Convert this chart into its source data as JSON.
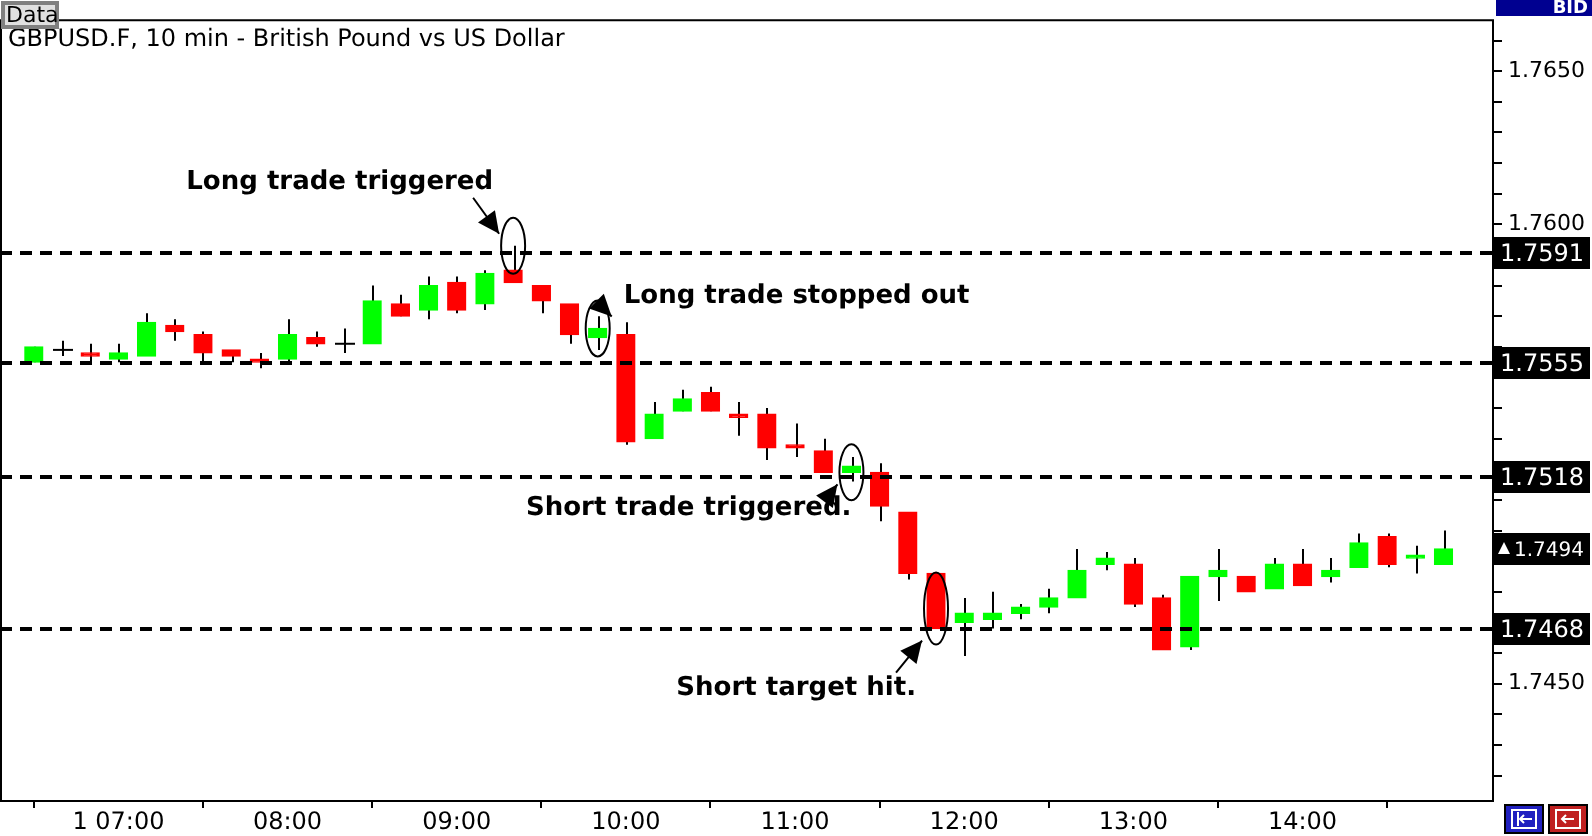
{
  "chart_data": {
    "type": "candlestick",
    "title": "GBPUSD.F, 10 min - British Pound vs US Dollar",
    "x": [
      6.5,
      6.6667,
      6.8333,
      7,
      7.1667,
      7.3333,
      7.5,
      7.6667,
      7.8333,
      8,
      8.1667,
      8.3333,
      8.5,
      8.6667,
      8.8333,
      9,
      9.1667,
      9.3333,
      9.5,
      9.6667,
      9.8333,
      10,
      10.1667,
      10.3333,
      10.5,
      10.6667,
      10.8333,
      11,
      11.1667,
      11.3333,
      11.5,
      11.6667,
      11.8333,
      12,
      12.1667,
      12.3333,
      12.5,
      12.6667,
      12.8333,
      13,
      13.1667,
      13.3333,
      13.5,
      13.6667,
      13.8333,
      14,
      14.1667,
      14.3333,
      14.5,
      14.6667,
      14.8333
    ],
    "ohlc": [
      [
        1.7555,
        1.756,
        1.7555,
        1.756
      ],
      [
        1.7559,
        1.7562,
        1.7557,
        1.7559
      ],
      [
        1.7558,
        1.7561,
        1.7555,
        1.7557
      ],
      [
        1.7556,
        1.7561,
        1.7555,
        1.7558
      ],
      [
        1.7557,
        1.7571,
        1.7557,
        1.7568
      ],
      [
        1.7567,
        1.7569,
        1.7562,
        1.7565
      ],
      [
        1.7564,
        1.7565,
        1.7555,
        1.7558
      ],
      [
        1.7559,
        1.7559,
        1.7555,
        1.7557
      ],
      [
        1.7556,
        1.7558,
        1.7553,
        1.7555
      ],
      [
        1.7556,
        1.7569,
        1.7555,
        1.7564
      ],
      [
        1.7563,
        1.7565,
        1.756,
        1.7561
      ],
      [
        1.7561,
        1.7566,
        1.7558,
        1.7561
      ],
      [
        1.7561,
        1.758,
        1.7561,
        1.7575
      ],
      [
        1.7574,
        1.7577,
        1.757,
        1.757
      ],
      [
        1.7572,
        1.7583,
        1.7569,
        1.758
      ],
      [
        1.7581,
        1.7583,
        1.7571,
        1.7572
      ],
      [
        1.7574,
        1.7585,
        1.7572,
        1.7584
      ],
      [
        1.7585,
        1.7593,
        1.7581,
        1.7581
      ],
      [
        1.758,
        1.758,
        1.7571,
        1.7575
      ],
      [
        1.7574,
        1.7574,
        1.7561,
        1.7564
      ],
      [
        1.7563,
        1.757,
        1.7559,
        1.7566
      ],
      [
        1.7564,
        1.7568,
        1.7528,
        1.7529
      ],
      [
        1.753,
        1.7542,
        1.753,
        1.7538
      ],
      [
        1.7539,
        1.7546,
        1.7539,
        1.7543
      ],
      [
        1.7545,
        1.7547,
        1.7539,
        1.7539
      ],
      [
        1.7538,
        1.7542,
        1.7531,
        1.7537
      ],
      [
        1.7538,
        1.754,
        1.7523,
        1.7527
      ],
      [
        1.7528,
        1.7535,
        1.7524,
        1.7527
      ],
      [
        1.7526,
        1.753,
        1.7519,
        1.7519
      ],
      [
        1.7519,
        1.7524,
        1.7516,
        1.7521
      ],
      [
        1.7519,
        1.7522,
        1.7503,
        1.7508
      ],
      [
        1.7506,
        1.7506,
        1.7484,
        1.7486
      ],
      [
        1.7486,
        1.7486,
        1.7468,
        1.7468
      ],
      [
        1.747,
        1.7478,
        1.7459,
        1.7473
      ],
      [
        1.7471,
        1.748,
        1.7468,
        1.7473
      ],
      [
        1.7473,
        1.7476,
        1.7471,
        1.7475
      ],
      [
        1.7475,
        1.7481,
        1.7473,
        1.7478
      ],
      [
        1.7478,
        1.7494,
        1.7478,
        1.7487
      ],
      [
        1.7489,
        1.7493,
        1.7487,
        1.7491
      ],
      [
        1.7489,
        1.7491,
        1.7475,
        1.7476
      ],
      [
        1.7478,
        1.7479,
        1.7461,
        1.7461
      ],
      [
        1.7462,
        1.7485,
        1.7461,
        1.7485
      ],
      [
        1.7485,
        1.7494,
        1.7477,
        1.7487
      ],
      [
        1.7485,
        1.7485,
        1.748,
        1.748
      ],
      [
        1.7481,
        1.7491,
        1.7481,
        1.7489
      ],
      [
        1.7489,
        1.7494,
        1.7482,
        1.7482
      ],
      [
        1.7485,
        1.7491,
        1.7483,
        1.7487
      ],
      [
        1.7488,
        1.7499,
        1.7488,
        1.7496
      ],
      [
        1.7498,
        1.7499,
        1.7488,
        1.7489
      ],
      [
        1.7491,
        1.7495,
        1.7486,
        1.7492
      ],
      [
        1.7489,
        1.75,
        1.7489,
        1.7494
      ]
    ],
    "colors": [
      "#00ff00",
      "#000000",
      "#ff0000",
      "#00ff00",
      "#00ff00",
      "#ff0000",
      "#ff0000",
      "#ff0000",
      "#ff0000",
      "#00ff00",
      "#ff0000",
      "#000000",
      "#00ff00",
      "#ff0000",
      "#00ff00",
      "#ff0000",
      "#00ff00",
      "#ff0000",
      "#ff0000",
      "#ff0000",
      "#00ff00",
      "#ff0000",
      "#00ff00",
      "#00ff00",
      "#ff0000",
      "#ff0000",
      "#ff0000",
      "#ff0000",
      "#ff0000",
      "#00ff00",
      "#ff0000",
      "#ff0000",
      "#ff0000",
      "#00ff00",
      "#00ff00",
      "#00ff00",
      "#00ff00",
      "#00ff00",
      "#00ff00",
      "#ff0000",
      "#ff0000",
      "#00ff00",
      "#00ff00",
      "#ff0000",
      "#00ff00",
      "#ff0000",
      "#00ff00",
      "#00ff00",
      "#ff0000",
      "#00ff00",
      "#00ff00"
    ],
    "xlim": [
      6.3,
      15.12
    ],
    "xticks": [
      {
        "value": 7,
        "label": "1 07:00"
      },
      {
        "value": 8,
        "label": "08:00"
      },
      {
        "value": 9,
        "label": "09:00"
      },
      {
        "value": 10,
        "label": "10:00"
      },
      {
        "value": 11,
        "label": "11:00"
      },
      {
        "value": 12,
        "label": "12:00"
      },
      {
        "value": 13,
        "label": "13:00"
      },
      {
        "value": 14,
        "label": "14:00"
      }
    ],
    "ylim": [
      1.7412,
      1.7667
    ],
    "yticks": [
      {
        "value": 1.742,
        "label": null
      },
      {
        "value": 1.743,
        "label": null
      },
      {
        "value": 1.744,
        "label": null
      },
      {
        "value": 1.745,
        "label": "1.7450"
      },
      {
        "value": 1.746,
        "label": null
      },
      {
        "value": 1.747,
        "label": null
      },
      {
        "value": 1.748,
        "label": null
      },
      {
        "value": 1.749,
        "label": null
      },
      {
        "value": 1.75,
        "label": null
      },
      {
        "value": 1.751,
        "label": null
      },
      {
        "value": 1.752,
        "label": null
      },
      {
        "value": 1.753,
        "label": null
      },
      {
        "value": 1.754,
        "label": null
      },
      {
        "value": 1.755,
        "label": null
      },
      {
        "value": 1.756,
        "label": null
      },
      {
        "value": 1.757,
        "label": null
      },
      {
        "value": 1.758,
        "label": null
      },
      {
        "value": 1.759,
        "label": null
      },
      {
        "value": 1.76,
        "label": "1.7600"
      },
      {
        "value": 1.761,
        "label": null
      },
      {
        "value": 1.762,
        "label": null
      },
      {
        "value": 1.763,
        "label": null
      },
      {
        "value": 1.764,
        "label": null
      },
      {
        "value": 1.765,
        "label": "1.7650"
      },
      {
        "value": 1.766,
        "label": null
      }
    ],
    "ref_lines": [
      {
        "axis": "y",
        "value": 1.7591,
        "label": "1.7591",
        "color": "#000000",
        "line_style": "dashed"
      },
      {
        "axis": "y",
        "value": 1.7555,
        "label": "1.7555",
        "color": "#000000",
        "line_style": "dashed"
      },
      {
        "axis": "y",
        "value": 1.7518,
        "label": "1.7518",
        "color": "#000000",
        "line_style": "dashed"
      },
      {
        "axis": "y",
        "value": 1.7468,
        "label": "1.7468",
        "color": "#000000",
        "line_style": "dashed"
      }
    ],
    "annotations": [
      "Data",
      "BID",
      "1.7494",
      {
        "text": "Long trade triggered",
        "x": 9.3333,
        "y": 1.7593
      },
      {
        "text": "Long trade stopped out",
        "x": 9.8333,
        "y": 1.7566
      },
      {
        "text": "Short trade triggered.",
        "x": 11.3333,
        "y": 1.7519
      },
      {
        "text": "Short target hit.",
        "x": 11.8333,
        "y": 1.7468
      }
    ]
  }
}
